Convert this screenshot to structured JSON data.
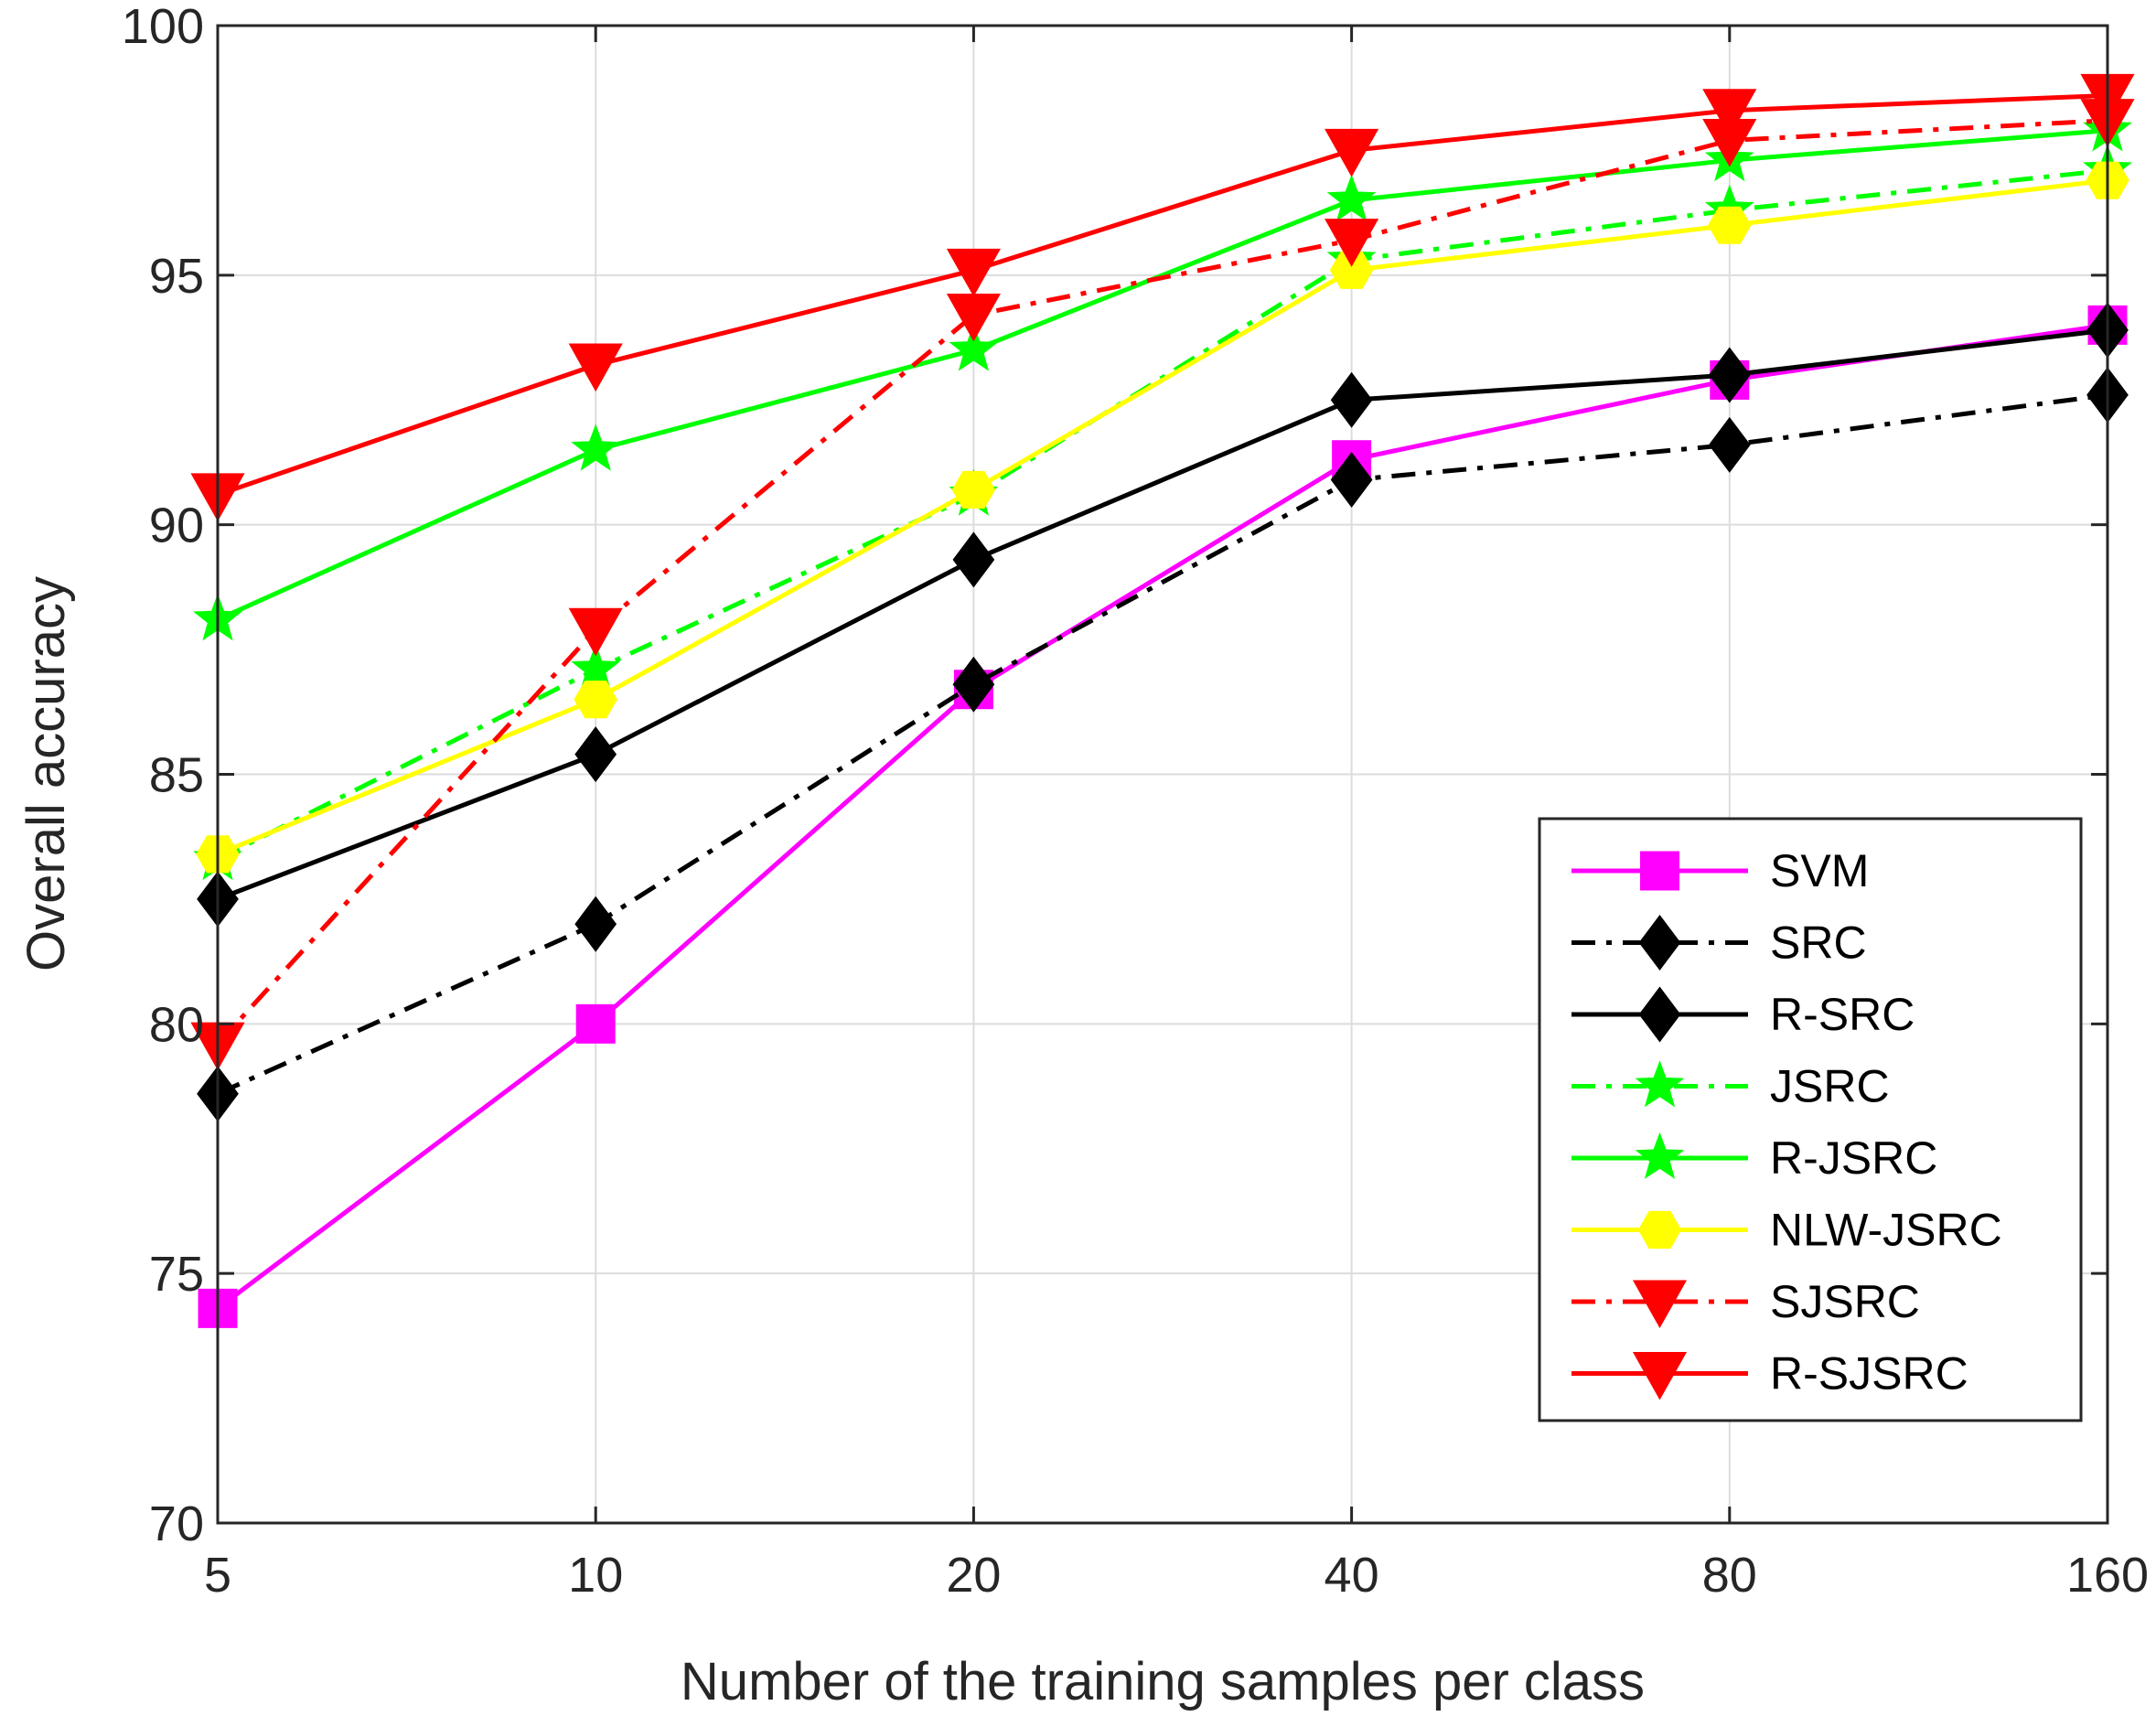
{
  "chart_data": {
    "type": "line",
    "title": "",
    "xlabel": "Number of the training samples per class",
    "ylabel": "Overall accuracy",
    "categories": [
      "5",
      "10",
      "20",
      "40",
      "80",
      "160"
    ],
    "ylim": [
      70,
      100
    ],
    "yticks": [
      "70",
      "75",
      "80",
      "85",
      "90",
      "95",
      "100"
    ],
    "grid": true,
    "legend_position": "bottom-right",
    "series": [
      {
        "name": "SVM",
        "values": [
          74.3,
          80.0,
          86.7,
          91.3,
          92.9,
          94.0
        ],
        "color": "#ff00ff",
        "dash": "solid",
        "marker": "square"
      },
      {
        "name": "SRC",
        "values": [
          78.6,
          82.0,
          86.8,
          90.9,
          91.6,
          92.6
        ],
        "color": "#000000",
        "dash": "dashdot",
        "marker": "diamond"
      },
      {
        "name": "R-SRC",
        "values": [
          82.5,
          85.4,
          89.3,
          92.5,
          93.0,
          93.9
        ],
        "color": "#000000",
        "dash": "solid",
        "marker": "diamond"
      },
      {
        "name": "JSRC",
        "values": [
          83.3,
          87.1,
          90.6,
          95.3,
          96.3,
          97.1
        ],
        "color": "#00ff00",
        "dash": "dashdot",
        "marker": "star"
      },
      {
        "name": "R-JSRC",
        "values": [
          88.1,
          91.5,
          93.5,
          96.5,
          97.3,
          97.9
        ],
        "color": "#00ff00",
        "dash": "solid",
        "marker": "star"
      },
      {
        "name": "NLW-JSRC",
        "values": [
          83.4,
          86.5,
          90.7,
          95.1,
          96.0,
          96.9
        ],
        "color": "#ffff00",
        "dash": "solid",
        "marker": "hexagon"
      },
      {
        "name": "SJSRC",
        "values": [
          79.6,
          87.9,
          94.2,
          95.7,
          97.7,
          98.1
        ],
        "color": "#ff0000",
        "dash": "dashdot",
        "marker": "triangle-down"
      },
      {
        "name": "R-SJSRC",
        "values": [
          90.6,
          93.2,
          95.1,
          97.5,
          98.3,
          98.6
        ],
        "color": "#ff0000",
        "dash": "solid",
        "marker": "triangle-down"
      }
    ]
  }
}
